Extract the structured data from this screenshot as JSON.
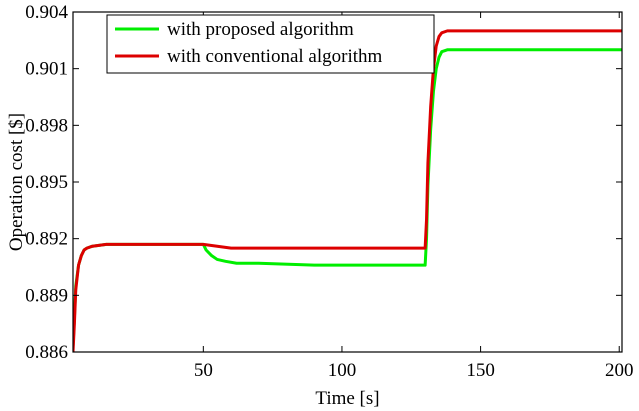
{
  "chart_data": {
    "type": "line",
    "title": "",
    "xlabel": "Time [s]",
    "ylabel": "Operation cost [$]",
    "xlim": [
      3,
      201
    ],
    "ylim": [
      0.886,
      0.904
    ],
    "x_ticks": [
      50,
      100,
      150,
      200
    ],
    "y_ticks": [
      0.886,
      0.889,
      0.892,
      0.895,
      0.898,
      0.901,
      0.904
    ],
    "x_tick_labels": [
      "50",
      "100",
      "150",
      "200"
    ],
    "y_tick_labels": [
      "0.886",
      "0.889",
      "0.892",
      "0.895",
      "0.898",
      "0.901",
      "0.904"
    ],
    "grid": false,
    "legend_position": "top-left",
    "series": [
      {
        "name": "with proposed algorithm",
        "color": "#00ee00",
        "x": [
          3,
          3.5,
          4,
          5,
          6,
          7,
          8,
          10,
          15,
          30,
          50,
          51,
          53,
          55,
          58,
          62,
          70,
          90,
          110,
          130,
          130.5,
          131,
          132,
          133,
          134,
          135,
          136,
          138,
          140,
          150,
          170,
          201
        ],
        "y": [
          0.8863,
          0.8878,
          0.8895,
          0.8906,
          0.8911,
          0.8914,
          0.8915,
          0.8916,
          0.8917,
          0.8917,
          0.8917,
          0.8914,
          0.8911,
          0.8909,
          0.8908,
          0.8907,
          0.8907,
          0.8906,
          0.8906,
          0.8906,
          0.892,
          0.8948,
          0.8978,
          0.8998,
          0.901,
          0.9016,
          0.9019,
          0.902,
          0.902,
          0.902,
          0.902,
          0.902
        ]
      },
      {
        "name": "with conventional algorithm",
        "color": "#dd0000",
        "x": [
          3,
          3.5,
          4,
          5,
          6,
          7,
          8,
          10,
          15,
          30,
          50,
          55,
          60,
          65,
          80,
          100,
          130,
          130.5,
          131,
          132,
          133,
          134,
          135,
          136,
          138,
          140,
          150,
          170,
          201
        ],
        "y": [
          0.886,
          0.8875,
          0.8893,
          0.8906,
          0.8911,
          0.8914,
          0.8915,
          0.8916,
          0.8917,
          0.8917,
          0.8917,
          0.8916,
          0.8915,
          0.8915,
          0.8915,
          0.8915,
          0.8915,
          0.893,
          0.896,
          0.899,
          0.901,
          0.9022,
          0.9027,
          0.9029,
          0.903,
          0.903,
          0.903,
          0.903,
          0.903
        ]
      }
    ]
  }
}
